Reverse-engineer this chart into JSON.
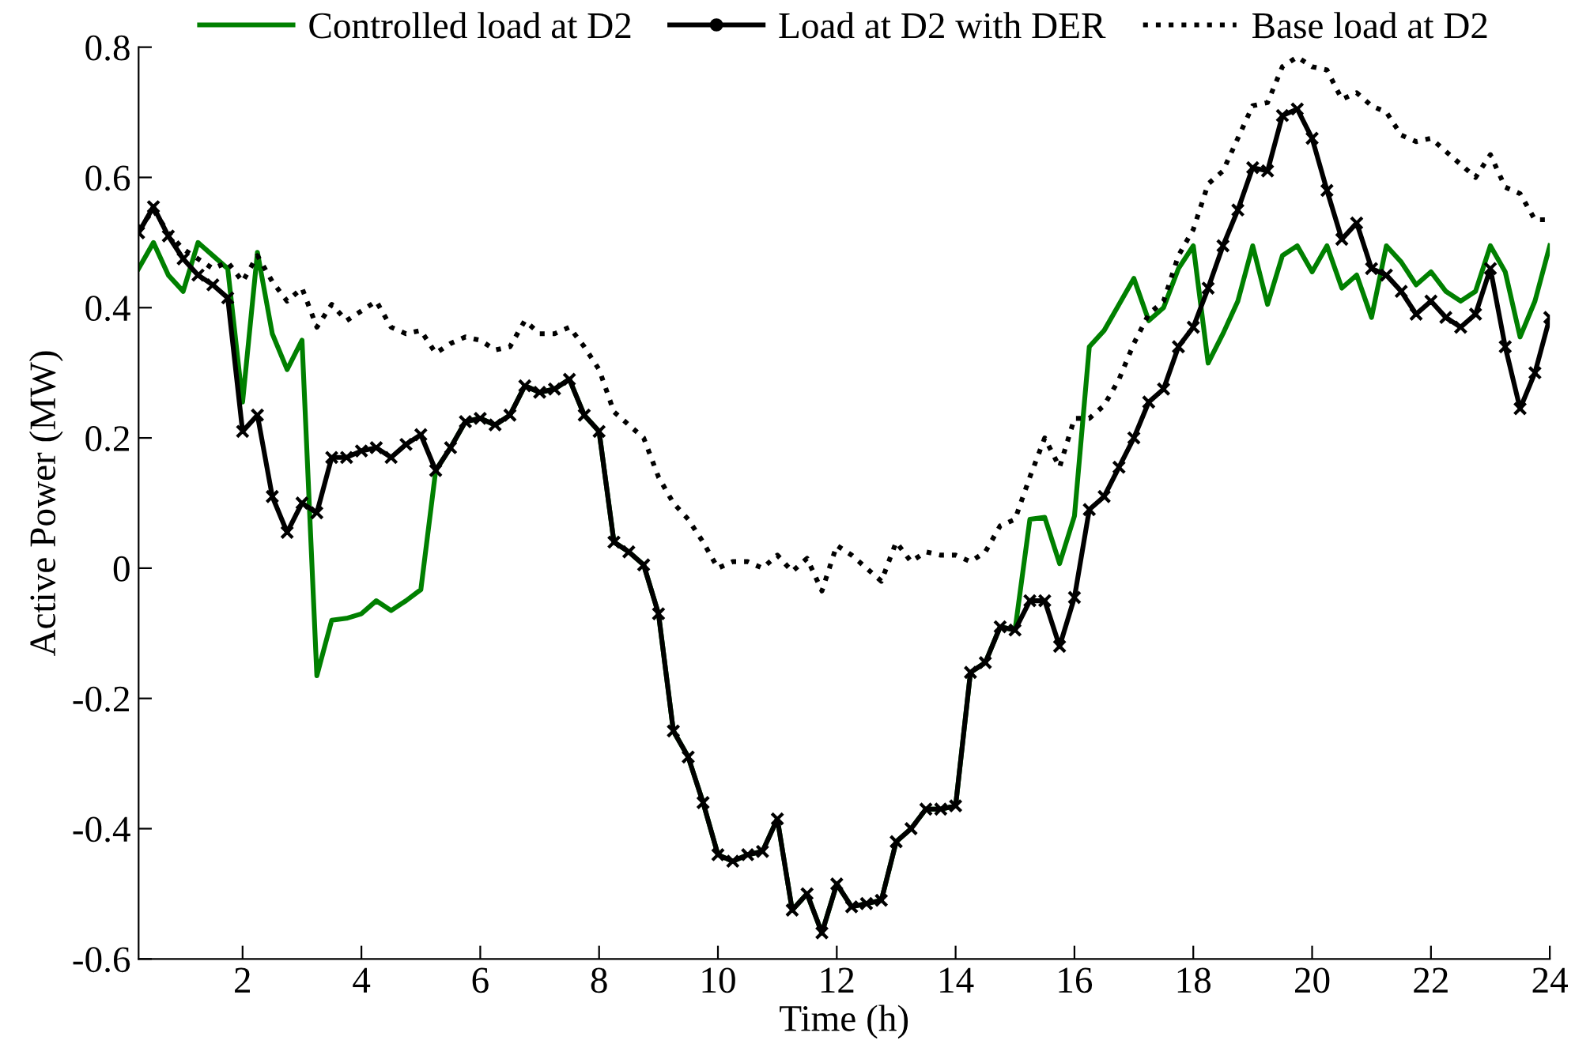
{
  "chart_data": {
    "type": "line",
    "xlabel": "Time (h)",
    "ylabel": "Active Power (MW)",
    "x": [
      0.25,
      0.5,
      0.75,
      1,
      1.25,
      1.5,
      1.75,
      2,
      2.25,
      2.5,
      2.75,
      3,
      3.25,
      3.5,
      3.75,
      4,
      4.25,
      4.5,
      4.75,
      5,
      5.25,
      5.5,
      5.75,
      6,
      6.25,
      6.5,
      6.75,
      7,
      7.25,
      7.5,
      7.75,
      8,
      8.25,
      8.5,
      8.75,
      9,
      9.25,
      9.5,
      9.75,
      10,
      10.25,
      10.5,
      10.75,
      11,
      11.25,
      11.5,
      11.75,
      12,
      12.25,
      12.5,
      12.75,
      13,
      13.25,
      13.5,
      13.75,
      14,
      14.25,
      14.5,
      14.75,
      15,
      15.25,
      15.5,
      15.75,
      16,
      16.25,
      16.5,
      16.75,
      17,
      17.25,
      17.5,
      17.75,
      18,
      18.25,
      18.5,
      18.75,
      19,
      19.25,
      19.5,
      19.75,
      20,
      20.25,
      20.5,
      20.75,
      21,
      21.25,
      21.5,
      21.75,
      22,
      22.25,
      22.5,
      22.75,
      23,
      23.25,
      23.5,
      23.75,
      24
    ],
    "series": [
      {
        "name": "Controlled load at D2",
        "color": "#008000",
        "marker": "none",
        "line_style": "solid",
        "values": [
          0.46,
          0.5,
          0.45,
          0.425,
          0.5,
          0.48,
          0.46,
          0.255,
          0.485,
          0.36,
          0.305,
          0.35,
          -0.165,
          -0.08,
          -0.077,
          -0.07,
          -0.05,
          -0.065,
          -0.05,
          -0.033,
          0.15,
          0.185,
          0.225,
          0.23,
          0.22,
          0.235,
          0.28,
          0.27,
          0.275,
          0.29,
          0.235,
          0.21,
          0.04,
          0.025,
          0.005,
          -0.07,
          -0.25,
          -0.29,
          -0.36,
          -0.44,
          -0.45,
          -0.44,
          -0.435,
          -0.385,
          -0.525,
          -0.5,
          -0.56,
          -0.485,
          -0.52,
          -0.515,
          -0.51,
          -0.42,
          -0.4,
          -0.37,
          -0.37,
          -0.365,
          -0.16,
          -0.145,
          -0.09,
          -0.095,
          0.075,
          0.078,
          0.007,
          0.08,
          0.34,
          0.365,
          0.405,
          0.445,
          0.38,
          0.4,
          0.46,
          0.495,
          0.315,
          0.36,
          0.41,
          0.495,
          0.405,
          0.48,
          0.495,
          0.455,
          0.495,
          0.43,
          0.45,
          0.385,
          0.495,
          0.47,
          0.435,
          0.455,
          0.425,
          0.41,
          0.425,
          0.495,
          0.455,
          0.355,
          0.41,
          0.495
        ]
      },
      {
        "name": "Load at D2 with DER",
        "color": "#000000",
        "marker": "cross",
        "line_style": "solid",
        "values": [
          0.515,
          0.555,
          0.51,
          0.475,
          0.45,
          0.435,
          0.415,
          0.21,
          0.235,
          0.11,
          0.055,
          0.1,
          0.085,
          0.17,
          0.17,
          0.18,
          0.185,
          0.17,
          0.19,
          0.205,
          0.15,
          0.185,
          0.225,
          0.23,
          0.22,
          0.235,
          0.28,
          0.27,
          0.275,
          0.29,
          0.235,
          0.21,
          0.04,
          0.025,
          0.005,
          -0.07,
          -0.25,
          -0.29,
          -0.36,
          -0.44,
          -0.45,
          -0.44,
          -0.435,
          -0.385,
          -0.525,
          -0.5,
          -0.56,
          -0.485,
          -0.52,
          -0.515,
          -0.51,
          -0.42,
          -0.4,
          -0.37,
          -0.37,
          -0.365,
          -0.16,
          -0.145,
          -0.09,
          -0.095,
          -0.05,
          -0.05,
          -0.12,
          -0.045,
          0.09,
          0.11,
          0.155,
          0.2,
          0.255,
          0.275,
          0.34,
          0.37,
          0.43,
          0.495,
          0.55,
          0.615,
          0.61,
          0.695,
          0.705,
          0.66,
          0.58,
          0.505,
          0.53,
          0.46,
          0.45,
          0.425,
          0.39,
          0.41,
          0.385,
          0.37,
          0.39,
          0.46,
          0.34,
          0.245,
          0.3,
          0.385
        ]
      },
      {
        "name": "Base load at D2",
        "color": "#000000",
        "marker": "none",
        "line_style": "dotted",
        "values": [
          0.52,
          0.55,
          0.515,
          0.49,
          0.475,
          0.46,
          0.47,
          0.44,
          0.48,
          0.44,
          0.41,
          0.43,
          0.37,
          0.405,
          0.38,
          0.395,
          0.41,
          0.37,
          0.36,
          0.365,
          0.33,
          0.345,
          0.355,
          0.35,
          0.335,
          0.34,
          0.38,
          0.36,
          0.36,
          0.37,
          0.34,
          0.305,
          0.24,
          0.22,
          0.2,
          0.14,
          0.1,
          0.075,
          0.04,
          0.0,
          0.01,
          0.01,
          0.0,
          0.02,
          -0.005,
          0.015,
          -0.035,
          0.035,
          0.02,
          0.0,
          -0.02,
          0.04,
          0.01,
          0.025,
          0.02,
          0.02,
          0.01,
          0.025,
          0.065,
          0.075,
          0.14,
          0.2,
          0.155,
          0.23,
          0.23,
          0.25,
          0.29,
          0.345,
          0.39,
          0.41,
          0.48,
          0.52,
          0.59,
          0.61,
          0.66,
          0.71,
          0.715,
          0.77,
          0.785,
          0.77,
          0.765,
          0.72,
          0.73,
          0.71,
          0.7,
          0.665,
          0.655,
          0.66,
          0.64,
          0.62,
          0.6,
          0.635,
          0.585,
          0.575,
          0.535,
          0.535
        ]
      }
    ],
    "xlim": [
      0.25,
      24
    ],
    "xticks": [
      2,
      4,
      6,
      8,
      10,
      12,
      14,
      16,
      18,
      20,
      22,
      24
    ],
    "ylim": [
      -0.6,
      0.8
    ],
    "yticks": [
      -0.6,
      -0.4,
      -0.2,
      0,
      0.2,
      0.4,
      0.6,
      0.8
    ],
    "grid": false,
    "legend": "top"
  }
}
